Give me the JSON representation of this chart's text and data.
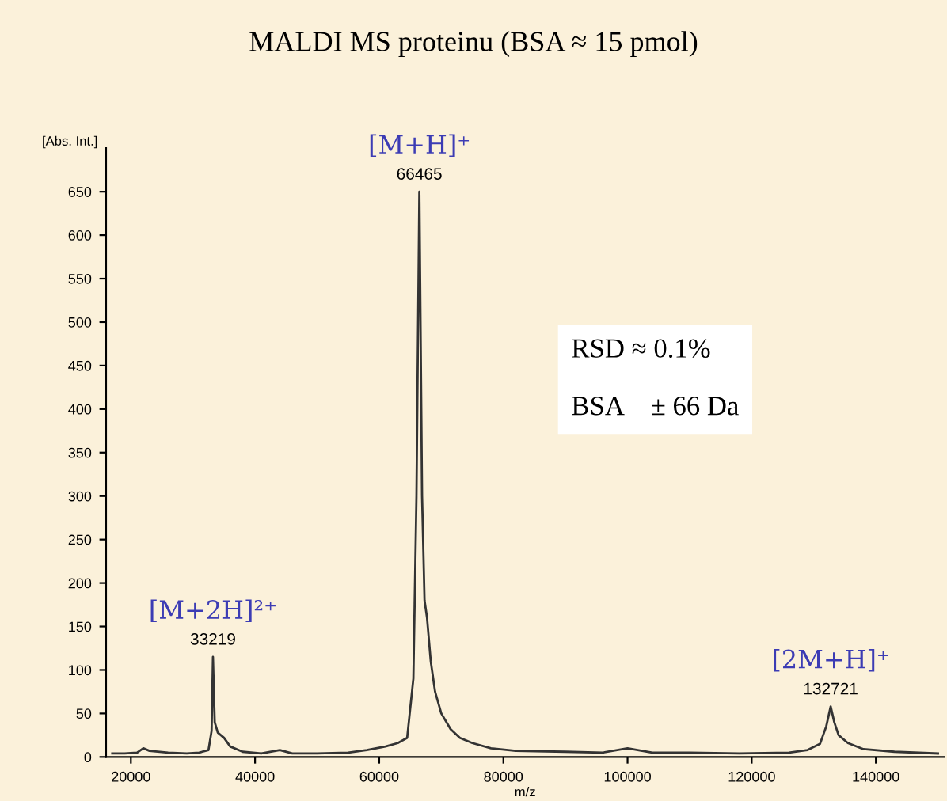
{
  "chart_data": {
    "type": "line",
    "title": "MALDI MS proteinu (BSA ≈ 15 pmol)",
    "xlabel": "m/z",
    "ylabel": "[Abs. Int.]",
    "x": [
      17000,
      19000,
      21000,
      22000,
      23000,
      26000,
      29000,
      31000,
      32500,
      33000,
      33219,
      33500,
      34000,
      35000,
      36000,
      38000,
      41000,
      44000,
      46000,
      50000,
      55000,
      58000,
      61000,
      63000,
      64500,
      65500,
      66000,
      66465,
      66900,
      67300,
      67700,
      68300,
      69000,
      70000,
      71500,
      73000,
      75000,
      78000,
      82000,
      90000,
      96000,
      100000,
      104000,
      110000,
      118000,
      126000,
      129000,
      131000,
      132000,
      132721,
      133300,
      134000,
      135500,
      138000,
      143000,
      150000
    ],
    "series": [
      {
        "color": "#333333",
        "values": [
          4,
          4,
          5,
          10,
          7,
          5,
          4,
          5,
          8,
          30,
          115,
          40,
          28,
          22,
          12,
          6,
          4,
          8,
          4,
          4,
          5,
          8,
          12,
          16,
          22,
          90,
          300,
          650,
          300,
          180,
          160,
          110,
          75,
          50,
          32,
          22,
          16,
          10,
          7,
          6,
          5,
          10,
          5,
          5,
          4,
          5,
          8,
          15,
          35,
          58,
          40,
          25,
          16,
          9,
          6,
          4
        ]
      }
    ],
    "xlim": [
      16000,
      151000
    ],
    "ylim": [
      0,
      700
    ],
    "xticks": [
      20000,
      40000,
      60000,
      80000,
      100000,
      120000,
      140000
    ],
    "yticks": [
      0,
      50,
      100,
      150,
      200,
      250,
      300,
      350,
      400,
      450,
      500,
      550,
      600,
      650
    ],
    "annotations": [
      {
        "text": "33219",
        "x": 33219,
        "y": 115
      },
      {
        "text": "[M+2H]²⁺",
        "x": 33219,
        "y": 115
      },
      {
        "text": "66465",
        "x": 66465,
        "y": 650
      },
      {
        "text": "[M+H]⁺",
        "x": 66465,
        "y": 650
      },
      {
        "text": "132721",
        "x": 132721,
        "y": 58
      },
      {
        "text": "[2M+H]⁺",
        "x": 132721,
        "y": 58
      },
      "RSD ≈ 0.1%",
      "BSA    ± 66 Da"
    ],
    "grid": false,
    "legend": false,
    "marker": "none",
    "line_style": "solid"
  }
}
